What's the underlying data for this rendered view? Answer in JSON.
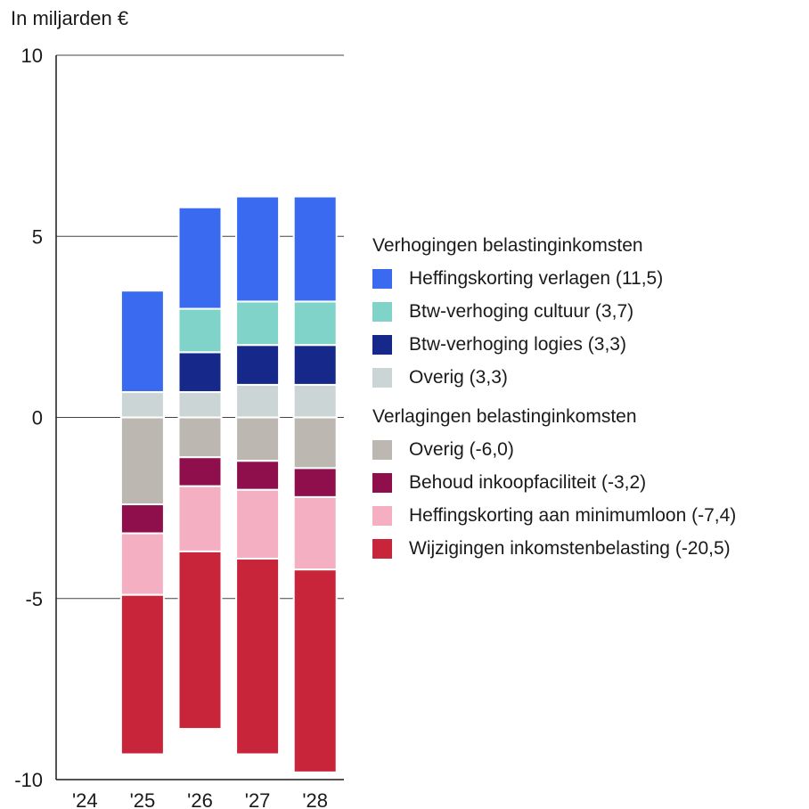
{
  "chart_data": {
    "type": "bar",
    "stacked": true,
    "unit_label": "In miljarden €",
    "categories": [
      "'24",
      "'25",
      "'26",
      "'27",
      "'28"
    ],
    "ylim": [
      -10,
      10
    ],
    "y_ticks": [
      "10",
      "5",
      "0",
      "-5",
      "-10"
    ],
    "y_tick_values": [
      10,
      5,
      0,
      -5,
      -10
    ],
    "grid": "horizontal",
    "legend_position": "right",
    "groups": [
      {
        "title": "Verhogingen belastinginkomsten",
        "series": [
          {
            "name": "Overig (3,3)",
            "color": "#ccd5d6",
            "values": [
              0,
              0.7,
              0.7,
              0.9,
              0.9
            ]
          },
          {
            "name": "Btw-verhoging logies (3,3)",
            "color": "#16298a",
            "values": [
              0,
              0,
              1.1,
              1.1,
              1.1
            ]
          },
          {
            "name": "Btw-verhoging cultuur (3,7)",
            "color": "#7fd3c8",
            "values": [
              0,
              0,
              1.2,
              1.2,
              1.2
            ]
          },
          {
            "name": "Heffingskorting verlagen (11,5)",
            "color": "#3a6af0",
            "values": [
              0,
              2.8,
              2.8,
              2.9,
              2.9
            ]
          }
        ]
      },
      {
        "title": "Verlagingen belastinginkomsten",
        "series": [
          {
            "name": "Overig (-6,0)",
            "color": "#bcb7b0",
            "values": [
              0,
              -2.4,
              -1.1,
              -1.2,
              -1.4
            ]
          },
          {
            "name": "Behoud inkoopfaciliteit (-3,2)",
            "color": "#8e0f4c",
            "values": [
              0,
              -0.8,
              -0.8,
              -0.8,
              -0.8
            ]
          },
          {
            "name": "Heffingskorting aan minimumloon (-7,4)",
            "color": "#f5afc2",
            "values": [
              0,
              -1.7,
              -1.8,
              -1.9,
              -2.0
            ]
          },
          {
            "name": "Wijzigingen inkomstenbelasting (-20,5)",
            "color": "#c8243a",
            "values": [
              0,
              -4.4,
              -4.9,
              -5.4,
              -5.6
            ]
          }
        ]
      }
    ],
    "legend_order": [
      {
        "heading": "Verhogingen belastinginkomsten"
      },
      {
        "label": "Heffingskorting verlagen (11,5)",
        "color": "#3a6af0"
      },
      {
        "label": "Btw-verhoging cultuur (3,7)",
        "color": "#7fd3c8"
      },
      {
        "label": "Btw-verhoging logies (3,3)",
        "color": "#16298a"
      },
      {
        "label": "Overig (3,3)",
        "color": "#ccd5d6"
      },
      {
        "gap": true
      },
      {
        "heading": "Verlagingen belastinginkomsten"
      },
      {
        "label": "Overig (-6,0)",
        "color": "#bcb7b0"
      },
      {
        "label": "Behoud inkoopfaciliteit (-3,2)",
        "color": "#8e0f4c"
      },
      {
        "label": "Heffingskorting aan minimumloon (-7,4)",
        "color": "#f5afc2"
      },
      {
        "label": "Wijzigingen inkomstenbelasting (-20,5)",
        "color": "#c8243a"
      }
    ]
  }
}
